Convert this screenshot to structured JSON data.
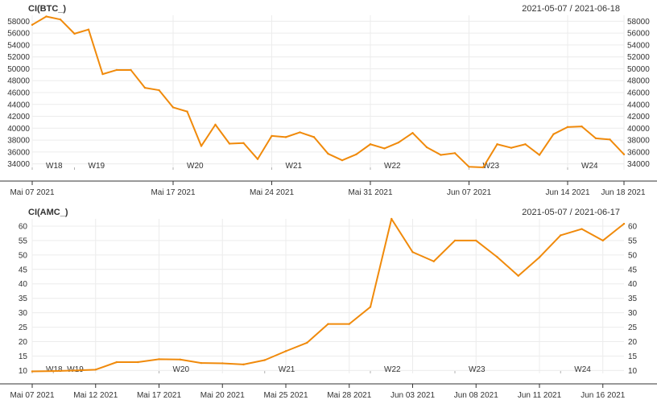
{
  "chart_data": [
    {
      "type": "line",
      "title": "CI(BTC_)",
      "date_range": "2021-05-07 / 2021-06-18",
      "line_color": "#f08a0b",
      "ylim": [
        33000,
        59000
      ],
      "y_ticks": [
        34000,
        36000,
        38000,
        40000,
        42000,
        44000,
        46000,
        48000,
        50000,
        52000,
        54000,
        56000,
        58000
      ],
      "x_start": "2021-05-07",
      "x_end": "2021-06-18",
      "x_tick_labels": [
        {
          "label": "Mai 07 2021",
          "date": "2021-05-07"
        },
        {
          "label": "Mai 17 2021",
          "date": "2021-05-17"
        },
        {
          "label": "Mai 24 2021",
          "date": "2021-05-24"
        },
        {
          "label": "Mai 31 2021",
          "date": "2021-05-31"
        },
        {
          "label": "Jun 07 2021",
          "date": "2021-06-07"
        },
        {
          "label": "Jun 14 2021",
          "date": "2021-06-14"
        },
        {
          "label": "Jun 18 2021",
          "date": "2021-06-18"
        }
      ],
      "week_labels": [
        {
          "label": "W18",
          "date": "2021-05-07"
        },
        {
          "label": "W19",
          "date": "2021-05-10"
        },
        {
          "label": "W20",
          "date": "2021-05-17"
        },
        {
          "label": "W21",
          "date": "2021-05-24"
        },
        {
          "label": "W22",
          "date": "2021-05-31"
        },
        {
          "label": "W23",
          "date": "2021-06-07"
        },
        {
          "label": "W24",
          "date": "2021-06-14"
        }
      ],
      "series": [
        {
          "name": "CI(BTC_)",
          "x": [
            "2021-05-07",
            "2021-05-08",
            "2021-05-09",
            "2021-05-10",
            "2021-05-11",
            "2021-05-12",
            "2021-05-13",
            "2021-05-14",
            "2021-05-15",
            "2021-05-16",
            "2021-05-17",
            "2021-05-18",
            "2021-05-19",
            "2021-05-20",
            "2021-05-21",
            "2021-05-22",
            "2021-05-23",
            "2021-05-24",
            "2021-05-25",
            "2021-05-26",
            "2021-05-27",
            "2021-05-28",
            "2021-05-29",
            "2021-05-30",
            "2021-05-31",
            "2021-06-01",
            "2021-06-02",
            "2021-06-03",
            "2021-06-04",
            "2021-06-05",
            "2021-06-06",
            "2021-06-07",
            "2021-06-08",
            "2021-06-09",
            "2021-06-10",
            "2021-06-11",
            "2021-06-12",
            "2021-06-13",
            "2021-06-14",
            "2021-06-15",
            "2021-06-16",
            "2021-06-17",
            "2021-06-18"
          ],
          "values": [
            57400,
            58800,
            58300,
            55900,
            56600,
            49100,
            49800,
            49800,
            46800,
            46400,
            43500,
            42800,
            37000,
            40600,
            37400,
            37500,
            34800,
            38700,
            38500,
            39300,
            38500,
            35700,
            34600,
            35600,
            37300,
            36600,
            37600,
            39200,
            36800,
            35500,
            35800,
            33500,
            33400,
            37300,
            36700,
            37300,
            35500,
            39000,
            40200,
            40300,
            38300,
            38100,
            35600
          ]
        }
      ]
    },
    {
      "type": "line",
      "title": "CI(AMC_)",
      "date_range": "2021-05-07 / 2021-06-17",
      "line_color": "#f08a0b",
      "ylim": [
        9,
        62.5
      ],
      "y_ticks": [
        10,
        15,
        20,
        25,
        30,
        35,
        40,
        45,
        50,
        55,
        60
      ],
      "x_start": "2021-05-07",
      "x_end": "2021-06-17",
      "x_tick_labels": [
        {
          "label": "Mai 07 2021",
          "date": "2021-05-07"
        },
        {
          "label": "Mai 12 2021",
          "date": "2021-05-12"
        },
        {
          "label": "Mai 17 2021",
          "date": "2021-05-17"
        },
        {
          "label": "Mai 20 2021",
          "date": "2021-05-20"
        },
        {
          "label": "Mai 25 2021",
          "date": "2021-05-25"
        },
        {
          "label": "Mai 28 2021",
          "date": "2021-05-28"
        },
        {
          "label": "Jun 03 2021",
          "date": "2021-06-03"
        },
        {
          "label": "Jun 08 2021",
          "date": "2021-06-08"
        },
        {
          "label": "Jun 11 2021",
          "date": "2021-06-11"
        },
        {
          "label": "Jun 16 2021",
          "date": "2021-06-16"
        }
      ],
      "week_labels": [
        {
          "label": "W18",
          "date": "2021-05-07"
        },
        {
          "label": "W19",
          "date": "2021-05-10"
        },
        {
          "label": "W20",
          "date": "2021-05-17"
        },
        {
          "label": "W21",
          "date": "2021-05-24"
        },
        {
          "label": "W22",
          "date": "2021-06-01"
        },
        {
          "label": "W23",
          "date": "2021-06-07"
        },
        {
          "label": "W24",
          "date": "2021-06-14"
        }
      ],
      "series": [
        {
          "name": "CI(AMC_)",
          "x": [
            "2021-05-07",
            "2021-05-10",
            "2021-05-11",
            "2021-05-12",
            "2021-05-13",
            "2021-05-14",
            "2021-05-17",
            "2021-05-18",
            "2021-05-19",
            "2021-05-20",
            "2021-05-21",
            "2021-05-24",
            "2021-05-25",
            "2021-05-26",
            "2021-05-27",
            "2021-05-28",
            "2021-06-01",
            "2021-06-02",
            "2021-06-03",
            "2021-06-04",
            "2021-06-07",
            "2021-06-08",
            "2021-06-09",
            "2021-06-10",
            "2021-06-11",
            "2021-06-14",
            "2021-06-15",
            "2021-06-16",
            "2021-06-17"
          ],
          "values": [
            9.7,
            9.8,
            10.0,
            10.3,
            12.9,
            12.9,
            13.9,
            13.8,
            12.6,
            12.5,
            12.1,
            13.6,
            16.7,
            19.6,
            26.1,
            26.1,
            32.0,
            62.5,
            51.0,
            47.8,
            55.0,
            55.0,
            49.3,
            42.8,
            49.2,
            56.8,
            59.0,
            55.0,
            60.8
          ]
        }
      ]
    }
  ]
}
